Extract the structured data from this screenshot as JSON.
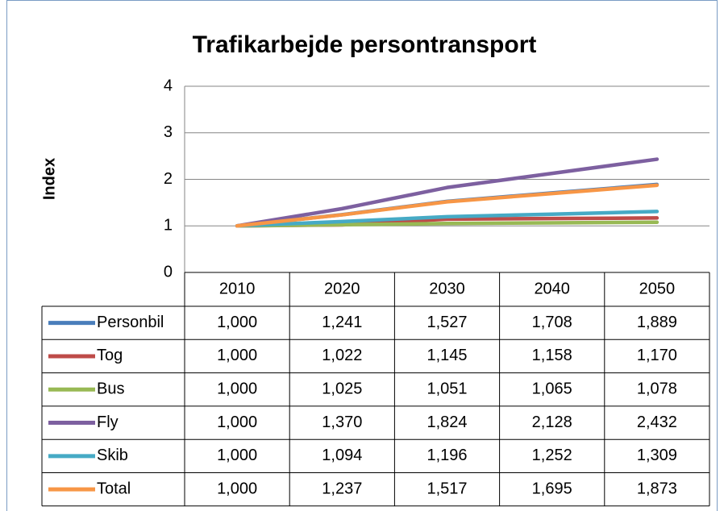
{
  "chart_data": {
    "type": "line",
    "title": "Trafikarbejde persontransport",
    "y_label": "Index",
    "categories": [
      "2010",
      "2020",
      "2030",
      "2040",
      "2050"
    ],
    "ylim": [
      0,
      4
    ],
    "yticks": [
      0,
      1,
      2,
      3,
      4
    ],
    "grid": true,
    "data_table": true,
    "series": [
      {
        "name": "Personbil",
        "color": "#4a7ebb",
        "values": [
          1.0,
          1.241,
          1.527,
          1.708,
          1.889
        ],
        "value_labels": [
          "1,000",
          "1,241",
          "1,527",
          "1,708",
          "1,889"
        ]
      },
      {
        "name": "Tog",
        "color": "#be4b48",
        "values": [
          1.0,
          1.022,
          1.145,
          1.158,
          1.17
        ],
        "value_labels": [
          "1,000",
          "1,022",
          "1,145",
          "1,158",
          "1,170"
        ]
      },
      {
        "name": "Bus",
        "color": "#98b954",
        "values": [
          1.0,
          1.025,
          1.051,
          1.065,
          1.078
        ],
        "value_labels": [
          "1,000",
          "1,025",
          "1,051",
          "1,065",
          "1,078"
        ]
      },
      {
        "name": "Fly",
        "color": "#7d60a0",
        "values": [
          1.0,
          1.37,
          1.824,
          2.128,
          2.432
        ],
        "value_labels": [
          "1,000",
          "1,370",
          "1,824",
          "2,128",
          "2,432"
        ]
      },
      {
        "name": "Skib",
        "color": "#46aac5",
        "values": [
          1.0,
          1.094,
          1.196,
          1.252,
          1.309
        ],
        "value_labels": [
          "1,000",
          "1,094",
          "1,196",
          "1,252",
          "1,309"
        ]
      },
      {
        "name": "Total",
        "color": "#f79646",
        "values": [
          1.0,
          1.237,
          1.517,
          1.695,
          1.873
        ],
        "value_labels": [
          "1,000",
          "1,237",
          "1,517",
          "1,695",
          "1,873"
        ]
      }
    ]
  }
}
